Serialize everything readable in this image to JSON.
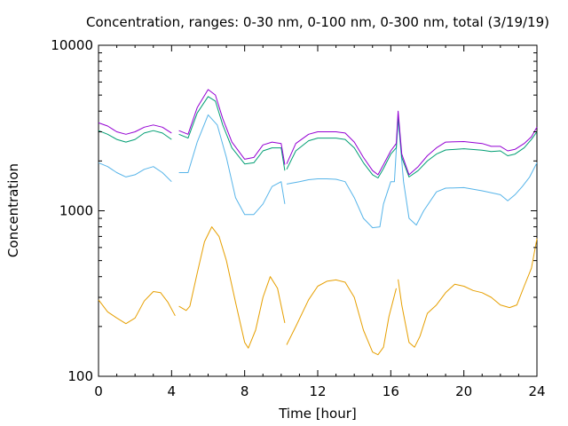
{
  "chart_data": {
    "type": "line",
    "title": "Concentration, ranges: 0-30 nm, 0-100 nm, 0-300 nm, total (3/19/19)",
    "xlabel": "Time [hour]",
    "ylabel": "Concentration",
    "xlim": [
      0,
      24
    ],
    "ylim": [
      100,
      10000
    ],
    "yscale": "log",
    "grid": false,
    "legend": "none",
    "x_ticks": [
      0,
      4,
      8,
      12,
      16,
      20,
      24
    ],
    "x_tick_labels": [
      "0",
      "4",
      "8",
      "12",
      "16",
      "20",
      "24"
    ],
    "y_ticks": [
      100,
      1000,
      10000
    ],
    "y_tick_labels": [
      "100",
      "1000",
      "10000"
    ],
    "series": [
      {
        "color": "#e69f00",
        "segments": [
          [
            [
              0,
              290
            ],
            [
              0.5,
              245
            ],
            [
              1,
              225
            ],
            [
              1.5,
              208
            ],
            [
              2,
              225
            ],
            [
              2.5,
              285
            ],
            [
              3,
              325
            ],
            [
              3.4,
              320
            ],
            [
              3.8,
              280
            ],
            [
              4.2,
              232
            ]
          ],
          [
            [
              4.4,
              265
            ],
            [
              4.8,
              250
            ],
            [
              5,
              265
            ],
            [
              5.4,
              420
            ],
            [
              5.8,
              650
            ],
            [
              6.2,
              800
            ],
            [
              6.6,
              700
            ],
            [
              7,
              500
            ],
            [
              7.5,
              280
            ],
            [
              8,
              160
            ],
            [
              8.2,
              148
            ],
            [
              8.6,
              190
            ],
            [
              9,
              300
            ],
            [
              9.4,
              400
            ],
            [
              9.8,
              340
            ],
            [
              10.2,
              210
            ]
          ],
          [
            [
              10.3,
              155
            ],
            [
              10.8,
              200
            ],
            [
              11.5,
              290
            ],
            [
              12,
              350
            ],
            [
              12.5,
              375
            ],
            [
              13,
              382
            ],
            [
              13.5,
              370
            ],
            [
              14,
              300
            ],
            [
              14.5,
              190
            ],
            [
              15,
              140
            ],
            [
              15.3,
              135
            ],
            [
              15.6,
              150
            ],
            [
              15.9,
              230
            ],
            [
              16.3,
              340
            ]
          ],
          [
            [
              16.4,
              385
            ],
            [
              16.6,
              270
            ],
            [
              17,
              160
            ],
            [
              17.3,
              150
            ],
            [
              17.6,
              175
            ],
            [
              18,
              240
            ],
            [
              18.5,
              270
            ],
            [
              19,
              320
            ],
            [
              19.5,
              360
            ],
            [
              20,
              350
            ],
            [
              20.5,
              330
            ],
            [
              21,
              320
            ],
            [
              21.5,
              300
            ],
            [
              22,
              270
            ],
            [
              22.5,
              260
            ],
            [
              22.9,
              270
            ],
            [
              23.3,
              350
            ],
            [
              23.7,
              450
            ],
            [
              24,
              680
            ]
          ]
        ]
      },
      {
        "color": "#56b4e9",
        "segments": [
          [
            [
              0,
              1950
            ],
            [
              0.5,
              1850
            ],
            [
              1,
              1700
            ],
            [
              1.5,
              1600
            ],
            [
              2,
              1650
            ],
            [
              2.5,
              1780
            ],
            [
              3,
              1850
            ],
            [
              3.5,
              1700
            ],
            [
              4,
              1500
            ]
          ],
          [
            [
              4.4,
              1700
            ],
            [
              4.9,
              1700
            ],
            [
              5.4,
              2600
            ],
            [
              6,
              3800
            ],
            [
              6.5,
              3300
            ],
            [
              7,
              2100
            ],
            [
              7.5,
              1200
            ],
            [
              8,
              950
            ],
            [
              8.5,
              950
            ],
            [
              9,
              1100
            ],
            [
              9.5,
              1400
            ],
            [
              10,
              1500
            ],
            [
              10.2,
              1100
            ]
          ],
          [
            [
              10.3,
              1450
            ],
            [
              11,
              1500
            ],
            [
              11.5,
              1540
            ],
            [
              12,
              1560
            ],
            [
              12.5,
              1560
            ],
            [
              13,
              1550
            ],
            [
              13.5,
              1500
            ],
            [
              14,
              1200
            ],
            [
              14.5,
              900
            ],
            [
              15,
              790
            ],
            [
              15.4,
              800
            ],
            [
              15.6,
              1100
            ],
            [
              16,
              1500
            ],
            [
              16.2,
              1500
            ],
            [
              16.4,
              3600
            ],
            [
              16.7,
              1500
            ],
            [
              17,
              900
            ],
            [
              17.4,
              820
            ],
            [
              17.8,
              1000
            ],
            [
              18.5,
              1300
            ],
            [
              19,
              1370
            ],
            [
              20,
              1380
            ],
            [
              21,
              1320
            ],
            [
              22,
              1250
            ],
            [
              22.4,
              1150
            ],
            [
              22.8,
              1250
            ],
            [
              23.2,
              1400
            ],
            [
              23.6,
              1600
            ],
            [
              24,
              1950
            ]
          ]
        ]
      },
      {
        "color": "#009e73",
        "segments": [
          [
            [
              0,
              3050
            ],
            [
              0.5,
              2900
            ],
            [
              1,
              2700
            ],
            [
              1.5,
              2600
            ],
            [
              2,
              2700
            ],
            [
              2.5,
              2950
            ],
            [
              3,
              3050
            ],
            [
              3.5,
              2950
            ],
            [
              4,
              2700
            ]
          ],
          [
            [
              4.4,
              2900
            ],
            [
              4.9,
              2750
            ],
            [
              5.4,
              3900
            ],
            [
              6,
              4900
            ],
            [
              6.4,
              4600
            ],
            [
              6.8,
              3300
            ],
            [
              7.3,
              2400
            ],
            [
              8,
              1920
            ],
            [
              8.5,
              1950
            ],
            [
              9,
              2300
            ],
            [
              9.5,
              2400
            ],
            [
              10,
              2400
            ],
            [
              10.2,
              1750
            ]
          ],
          [
            [
              10.3,
              1780
            ],
            [
              10.8,
              2300
            ],
            [
              11.5,
              2650
            ],
            [
              12,
              2750
            ],
            [
              12.5,
              2750
            ],
            [
              13,
              2750
            ],
            [
              13.5,
              2700
            ],
            [
              14,
              2400
            ],
            [
              14.5,
              1950
            ],
            [
              15,
              1650
            ],
            [
              15.3,
              1580
            ],
            [
              15.6,
              1800
            ],
            [
              16,
              2200
            ],
            [
              16.3,
              2400
            ],
            [
              16.4,
              3700
            ],
            [
              16.6,
              2100
            ],
            [
              17,
              1600
            ],
            [
              17.5,
              1750
            ],
            [
              18,
              2000
            ],
            [
              18.5,
              2200
            ],
            [
              19,
              2330
            ],
            [
              20,
              2370
            ],
            [
              21,
              2320
            ],
            [
              21.5,
              2280
            ],
            [
              22,
              2300
            ],
            [
              22.4,
              2150
            ],
            [
              22.8,
              2200
            ],
            [
              23.3,
              2400
            ],
            [
              23.7,
              2700
            ],
            [
              24,
              3000
            ]
          ]
        ]
      },
      {
        "color": "#9400d3",
        "segments": [
          [
            [
              0,
              3400
            ],
            [
              0.5,
              3250
            ],
            [
              1,
              3000
            ],
            [
              1.5,
              2900
            ],
            [
              2,
              3000
            ],
            [
              2.5,
              3200
            ],
            [
              3,
              3300
            ],
            [
              3.5,
              3200
            ],
            [
              4,
              2950
            ]
          ],
          [
            [
              4.4,
              3050
            ],
            [
              4.9,
              2900
            ],
            [
              5.4,
              4200
            ],
            [
              6,
              5400
            ],
            [
              6.4,
              5000
            ],
            [
              6.8,
              3600
            ],
            [
              7.3,
              2600
            ],
            [
              8,
              2050
            ],
            [
              8.5,
              2100
            ],
            [
              9,
              2500
            ],
            [
              9.5,
              2600
            ],
            [
              10,
              2550
            ],
            [
              10.2,
              1900
            ]
          ],
          [
            [
              10.3,
              1920
            ],
            [
              10.8,
              2550
            ],
            [
              11.5,
              2900
            ],
            [
              12,
              3000
            ],
            [
              12.5,
              3000
            ],
            [
              13,
              3000
            ],
            [
              13.5,
              2950
            ],
            [
              14,
              2600
            ],
            [
              14.5,
              2100
            ],
            [
              15,
              1750
            ],
            [
              15.3,
              1650
            ],
            [
              15.6,
              1900
            ],
            [
              16,
              2300
            ],
            [
              16.3,
              2550
            ],
            [
              16.4,
              4000
            ],
            [
              16.6,
              2200
            ],
            [
              17,
              1650
            ],
            [
              17.5,
              1850
            ],
            [
              18,
              2150
            ],
            [
              18.5,
              2400
            ],
            [
              19,
              2600
            ],
            [
              20,
              2620
            ],
            [
              21,
              2550
            ],
            [
              21.5,
              2450
            ],
            [
              22,
              2450
            ],
            [
              22.4,
              2300
            ],
            [
              22.8,
              2350
            ],
            [
              23.3,
              2550
            ],
            [
              23.7,
              2800
            ],
            [
              24,
              3200
            ]
          ]
        ]
      }
    ]
  }
}
